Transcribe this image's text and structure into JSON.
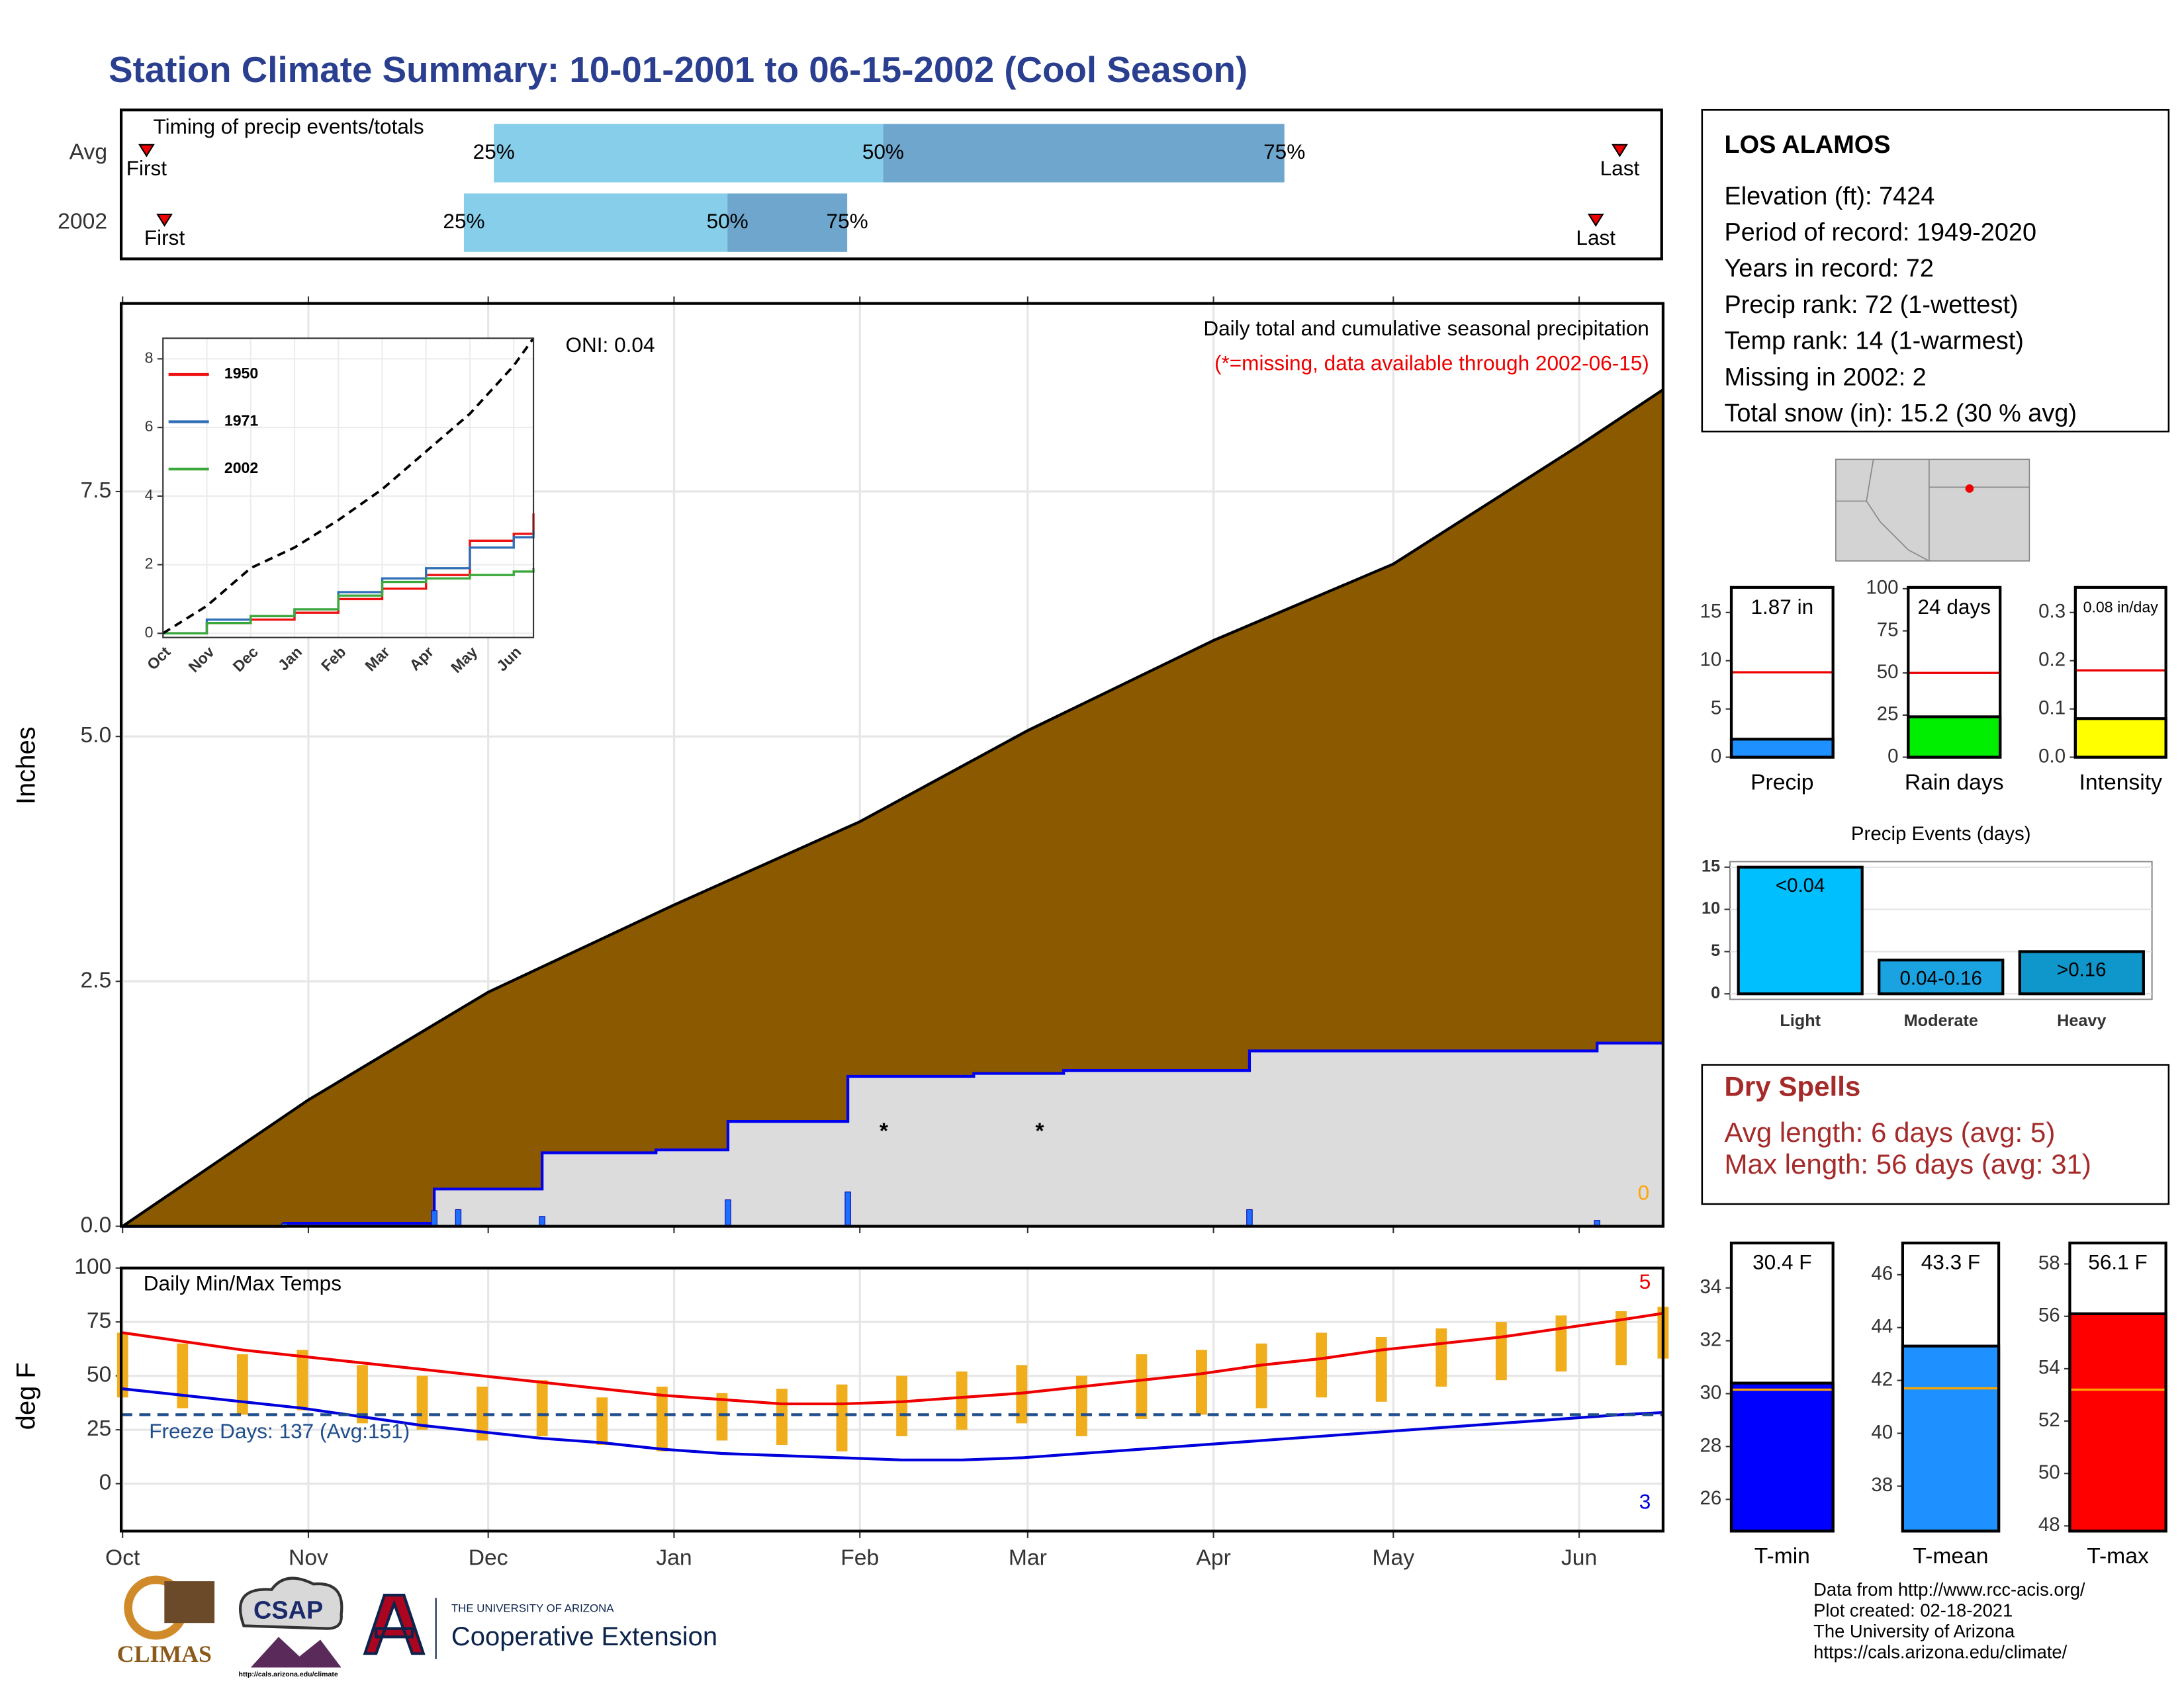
{
  "title": "Station Climate Summary: 10-01-2001 to 06-15-2002 (Cool Season)",
  "chart_data": [
    {
      "type": "timing",
      "title": "Timing of precip events/totals",
      "markers": [
        "First",
        "25%",
        "50%",
        "75%",
        "Last"
      ],
      "series": [
        {
          "name": "Avg",
          "values": [
            4,
            62,
            127,
            194,
            250
          ]
        },
        {
          "name": "2002",
          "values": [
            7,
            57,
            101,
            121,
            246
          ]
        }
      ],
      "colors": [
        "#87ceeb",
        "#6ea6cd"
      ],
      "marker_color": "#ee0000",
      "xlim": [
        0,
        257
      ]
    },
    {
      "type": "area",
      "y_label": "Inches",
      "subtitle": "Daily total and cumulative seasonal precipitation",
      "note": "(*=missing, data available through 2002-06-15)",
      "oni": "ONI: 0.04",
      "corner_label": "0",
      "xlim": [
        0,
        257
      ],
      "ylim": [
        0,
        9.42
      ],
      "xticks": [
        0,
        31,
        61,
        92,
        123,
        151,
        182,
        212,
        243
      ],
      "yticks": [
        {
          "value": 0,
          "label": "0.0"
        },
        2.5,
        {
          "value": 5,
          "label": "5.0"
        },
        7.5
      ],
      "grid": true,
      "series": [
        {
          "color": "#000000",
          "fill": "#8b5a00",
          "step": false,
          "x": [
            0,
            31,
            61,
            92,
            123,
            151,
            182,
            212,
            243,
            257
          ],
          "values": [
            0,
            1.29,
            2.39,
            3.28,
            4.13,
            5.06,
            5.98,
            6.76,
            7.97,
            8.54
          ]
        },
        {
          "color": "#0000ee",
          "fill": "#dcdcdc",
          "step": true,
          "x": [
            0,
            27,
            52,
            70,
            89,
            101,
            121,
            142,
            157,
            188,
            246,
            257
          ],
          "values": [
            0,
            0.03,
            0.38,
            0.75,
            0.78,
            1.07,
            1.53,
            1.56,
            1.59,
            1.79,
            1.87,
            1.87
          ]
        }
      ],
      "daily": {
        "color": "#1e6fff",
        "x": [
          27,
          52,
          56,
          70,
          101,
          121,
          188,
          246
        ],
        "values": [
          0.03,
          0.16,
          0.17,
          0.1,
          0.27,
          0.35,
          0.17,
          0.06
        ]
      },
      "missing": {
        "symbol": "*",
        "color": "#ee0000",
        "x": [
          127,
          153
        ],
        "values": [
          1.0,
          1.0
        ]
      }
    },
    {
      "type": "line",
      "xlim": [
        0,
        8.45
      ],
      "ylim": [
        0,
        8.6
      ],
      "xticks": [
        {
          "value": 0,
          "label": "Oct"
        },
        {
          "value": 1,
          "label": "Nov"
        },
        {
          "value": 2,
          "label": "Dec"
        },
        {
          "value": 3,
          "label": "Jan"
        },
        {
          "value": 4,
          "label": "Feb"
        },
        {
          "value": 5,
          "label": "Mar"
        },
        {
          "value": 6,
          "label": "Apr"
        },
        {
          "value": 7,
          "label": "May"
        },
        {
          "value": 8,
          "label": "Jun"
        }
      ],
      "yticks": [
        0,
        2,
        4,
        6,
        8
      ],
      "grid": true,
      "series": [
        {
          "name": "1950",
          "color": "#ee1111",
          "x": [
            0,
            1,
            2,
            3,
            4,
            5,
            6,
            7,
            8,
            8.45
          ],
          "values": [
            0,
            0.3,
            0.4,
            0.6,
            1.0,
            1.3,
            1.7,
            2.7,
            2.9,
            3.5
          ]
        },
        {
          "name": "1971",
          "color": "#2f6fb7",
          "x": [
            0,
            1,
            2,
            3,
            4,
            5,
            6,
            7,
            8,
            8.45
          ],
          "values": [
            0,
            0.4,
            0.5,
            0.7,
            1.2,
            1.6,
            1.9,
            2.5,
            2.8,
            3.0
          ]
        },
        {
          "name": "2002",
          "color": "#3aa83a",
          "x": [
            0,
            1,
            2,
            3,
            4,
            5,
            6,
            7,
            8,
            8.45
          ],
          "values": [
            0,
            0.3,
            0.5,
            0.7,
            1.1,
            1.5,
            1.6,
            1.7,
            1.8,
            1.9
          ]
        },
        {
          "color": "#000000",
          "dash": true,
          "x": [
            0,
            1,
            2,
            3,
            4,
            5,
            6,
            7,
            8,
            8.45
          ],
          "values": [
            0,
            0.8,
            1.9,
            2.5,
            3.3,
            4.2,
            5.3,
            6.4,
            7.8,
            8.6
          ]
        }
      ]
    },
    {
      "type": "temp",
      "title": "Daily Min/Max Temps",
      "y_label": "deg F",
      "xlim": [
        0,
        257
      ],
      "ylim": [
        -22,
        100
      ],
      "xticks": [
        {
          "value": 0,
          "label": "Oct"
        },
        {
          "value": 31,
          "label": "Nov"
        },
        {
          "value": 61,
          "label": "Dec"
        },
        {
          "value": 92,
          "label": "Jan"
        },
        {
          "value": 123,
          "label": "Feb"
        },
        {
          "value": 151,
          "label": "Mar"
        },
        {
          "value": 182,
          "label": "Apr"
        },
        {
          "value": 212,
          "label": "May"
        },
        {
          "value": 243,
          "label": "Jun"
        }
      ],
      "yticks": [
        0,
        25,
        50,
        75,
        100
      ],
      "grid": true,
      "x": [
        0,
        10,
        20,
        30,
        40,
        50,
        60,
        70,
        80,
        90,
        100,
        110,
        120,
        130,
        140,
        150,
        160,
        170,
        180,
        190,
        200,
        210,
        220,
        230,
        240,
        250,
        257
      ],
      "range": {
        "color": "#f0ad1c",
        "high": [
          70,
          65,
          60,
          62,
          55,
          50,
          45,
          48,
          40,
          45,
          42,
          44,
          46,
          50,
          52,
          55,
          50,
          60,
          62,
          65,
          70,
          68,
          72,
          75,
          78,
          80,
          82
        ],
        "low": [
          40,
          35,
          32,
          34,
          28,
          25,
          20,
          22,
          18,
          15,
          20,
          18,
          15,
          22,
          25,
          28,
          22,
          30,
          32,
          35,
          40,
          38,
          45,
          48,
          52,
          55,
          58
        ]
      },
      "series": [
        {
          "color": "#ee0000",
          "values": [
            70,
            66,
            62,
            59,
            56,
            53,
            50,
            47,
            44,
            41,
            39,
            37,
            37,
            38,
            40,
            42,
            45,
            48,
            51,
            55,
            58,
            62,
            65,
            68,
            72,
            76,
            79
          ]
        },
        {
          "color": "#0000dd",
          "values": [
            44,
            41,
            38,
            35,
            31,
            27,
            24,
            21,
            19,
            16,
            14,
            13,
            12,
            11,
            11,
            12,
            14,
            16,
            18,
            20,
            22,
            24,
            26,
            28,
            30,
            32,
            33
          ]
        }
      ],
      "freeze": {
        "value": 32,
        "label": "Freeze Days: 137 (Avg:151)",
        "color": "#1f4e8c"
      },
      "top_count": "5",
      "bottom_count": "3"
    },
    {
      "type": "bar",
      "categories": [
        "Precip"
      ],
      "values": [
        1.87
      ],
      "value_labels": [
        "1.87 in"
      ],
      "color": "#1e90ff",
      "avg": 8.8,
      "avg_color": "#ee0000",
      "ylim": [
        0,
        17.6
      ],
      "yticks": [
        0,
        5,
        10,
        15
      ]
    },
    {
      "type": "bar",
      "categories": [
        "Rain days"
      ],
      "values": [
        24
      ],
      "value_labels": [
        "24 days"
      ],
      "color": "#00ee00",
      "avg": 50,
      "avg_color": "#ee0000",
      "ylim": [
        0,
        100.8
      ],
      "yticks": [
        0,
        25,
        50,
        75,
        100
      ]
    },
    {
      "type": "bar",
      "categories": [
        "Intensity"
      ],
      "values": [
        0.08
      ],
      "value_labels": [
        "0.08 in/day"
      ],
      "color": "#ffff00",
      "avg": 0.18,
      "avg_color": "#ee0000",
      "ylim": [
        0,
        0.352
      ],
      "yticks": [
        {
          "value": 0,
          "label": "0.0"
        },
        0.1,
        0.2,
        0.3
      ]
    },
    {
      "type": "bar",
      "title": "Precip Events (days)",
      "categories": [
        "Light",
        "Moderate",
        "Heavy"
      ],
      "values": [
        15,
        4,
        5
      ],
      "bar_labels": [
        "<0.04",
        "0.04-0.16",
        ">0.16"
      ],
      "colors": [
        "#00bfff",
        "#1aa3e0",
        "#0f97cc"
      ],
      "ylim": [
        -0.66,
        15.66
      ],
      "yticks": [
        0,
        5,
        10,
        15
      ],
      "grid": true
    },
    {
      "type": "bar",
      "categories": [
        "T-min"
      ],
      "values": [
        30.4
      ],
      "value_labels": [
        "30.4 F"
      ],
      "color": "#0000ff",
      "avg": 30.15,
      "avg_color": "#ffa500",
      "ylim": [
        24.8,
        35.7
      ],
      "yticks": [
        26,
        28,
        30,
        32,
        34
      ]
    },
    {
      "type": "bar",
      "categories": [
        "T-mean"
      ],
      "values": [
        43.3
      ],
      "value_labels": [
        "43.3 F"
      ],
      "color": "#1e90ff",
      "avg": 41.7,
      "avg_color": "#ffa500",
      "ylim": [
        36.3,
        47.2
      ],
      "yticks": [
        38,
        40,
        42,
        44,
        46
      ]
    },
    {
      "type": "bar",
      "categories": [
        "T-max"
      ],
      "values": [
        56.1
      ],
      "value_labels": [
        "56.1 F"
      ],
      "color": "#ff0000",
      "avg": 53.2,
      "avg_color": "#ffa500",
      "ylim": [
        47.8,
        58.8
      ],
      "yticks": [
        48,
        50,
        52,
        54,
        56,
        58
      ]
    }
  ],
  "station": {
    "name": "LOS ALAMOS",
    "lines": [
      "Elevation (ft): 7424",
      "Period of record: 1949-2020",
      "Years in record: 72",
      "Precip rank: 72 (1-wettest)",
      "Temp rank: 14 (1-warmest)",
      "Missing in 2002: 2",
      "Total snow (in): 15.2 (30 % avg)"
    ]
  },
  "dry_spells": {
    "title": "Dry Spells",
    "lines": [
      "Avg length: 6 days (avg: 5)",
      "Max length: 56 days (avg: 31)"
    ]
  },
  "logos": {
    "climas": "CLIMAS",
    "csap": "CSAP",
    "csap_url": "http://cals.arizona.edu/climate",
    "ua": "THE UNIVERSITY OF ARIZONA",
    "coop": "Cooperative Extension"
  },
  "footer": [
    "Data from http://www.rcc-acis.org/",
    "Plot created: 02-18-2021",
    "The University of Arizona",
    "https://cals.arizona.edu/climate/"
  ]
}
